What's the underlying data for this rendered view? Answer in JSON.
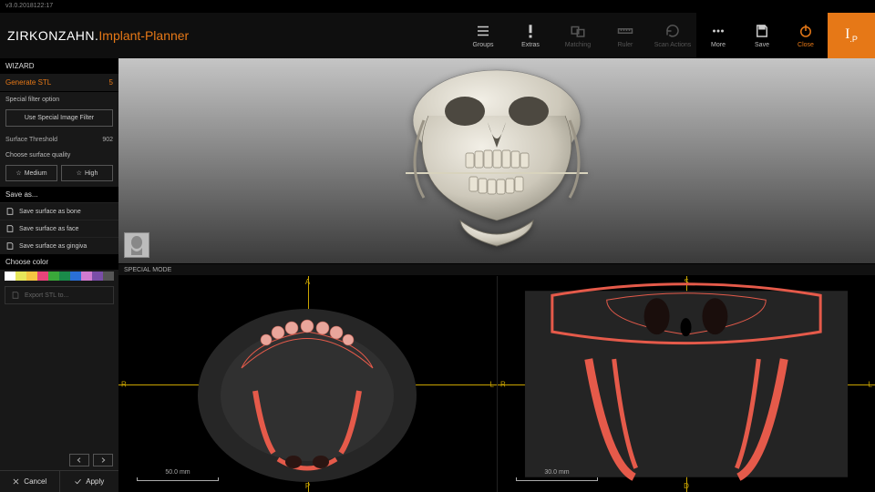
{
  "version": "v3.0.2018122:17",
  "brand": {
    "part1": "ZIRKONZAHN.",
    "part2": "Implant-Planner"
  },
  "toolbar": {
    "groups": "Groups",
    "extras": "Extras",
    "matching": "Matching",
    "ruler": "Ruler",
    "scan_actions": "Scan Actions",
    "more": "More",
    "save": "Save",
    "close": "Close"
  },
  "sidebar": {
    "wizard": "WIZARD",
    "step": "Generate STL",
    "step_index": "5",
    "filter_label": "Special filter option",
    "filter_button": "Use Special Image Filter",
    "threshold_label": "Surface Threshold",
    "threshold_value": "902",
    "quality_label": "Choose surface quality",
    "quality_medium": "Medium",
    "quality_high": "High",
    "save_as": "Save as...",
    "save_bone": "Save surface as bone",
    "save_face": "Save surface as face",
    "save_gingiva": "Save surface as gingiva",
    "choose_color": "Choose color",
    "swatches": [
      "#ffffff",
      "#e6e65a",
      "#f4c542",
      "#e6447a",
      "#3aa83a",
      "#1a8a4a",
      "#2a6fd6",
      "#d07bd0",
      "#7a4ea8",
      "#555555"
    ],
    "export": "Export STL to...",
    "cancel": "Cancel",
    "apply": "Apply"
  },
  "mode_bar": "SPECIAL MODE",
  "slices": {
    "left_scale": "50.0 mm",
    "right_scale": "30.0 mm",
    "axis": {
      "A": "A",
      "P": "P",
      "R": "R",
      "L": "L",
      "S": "S",
      "D": "D"
    },
    "accent": "#e55a4a",
    "crosshair": "#c9a400"
  },
  "logo": "I.P"
}
